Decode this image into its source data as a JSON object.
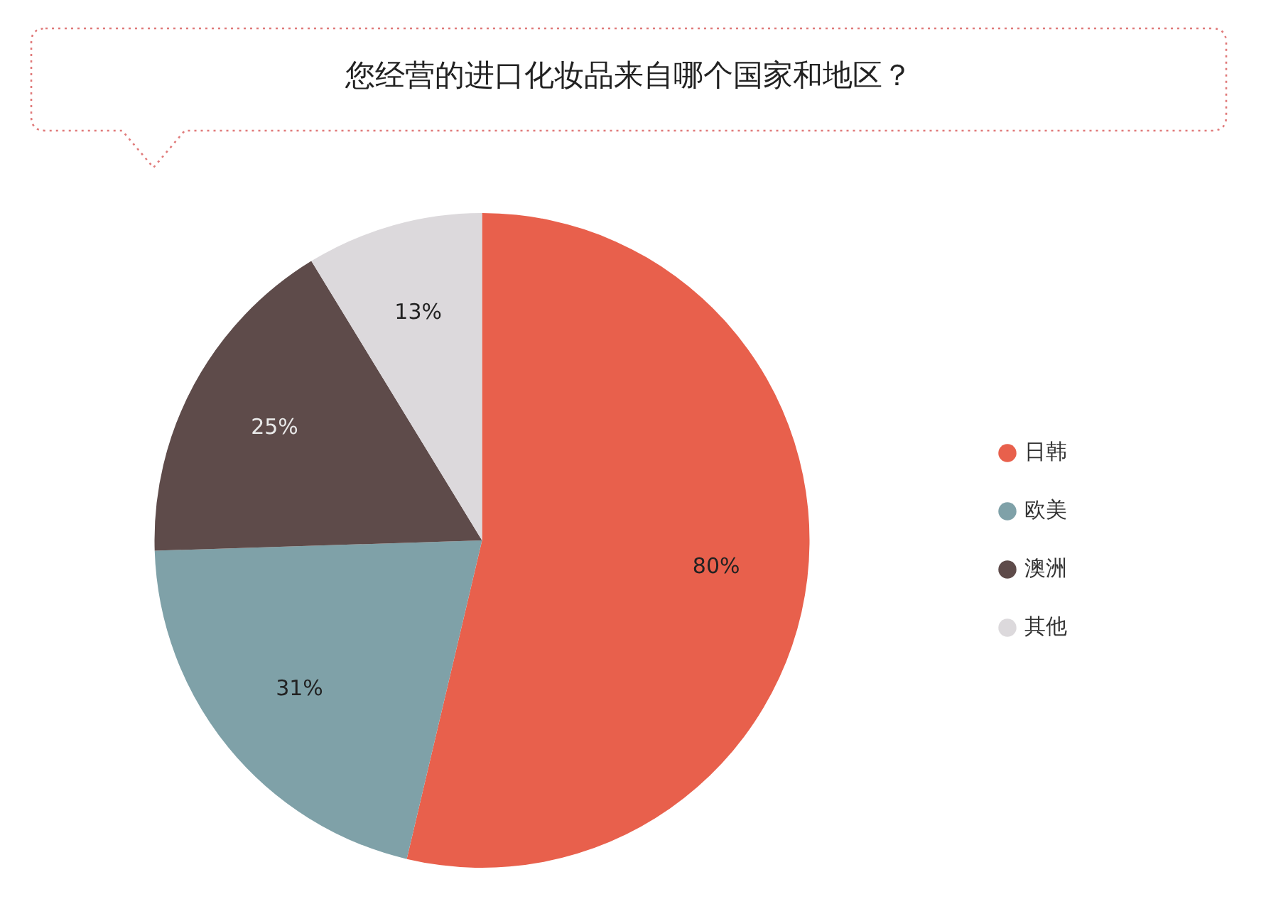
{
  "chart_data": {
    "type": "pie",
    "title": "您经营的进口化妆品来自哪个国家和地区？",
    "categories": [
      "日韩",
      "欧美",
      "澳洲",
      "其他"
    ],
    "values": [
      80,
      31,
      25,
      13
    ],
    "colors": [
      "#e8604c",
      "#7fa1a8",
      "#5e4b4a",
      "#dcd9dc"
    ],
    "value_labels": [
      "80%",
      "31%",
      "25%",
      "13%"
    ],
    "legend": "right"
  }
}
